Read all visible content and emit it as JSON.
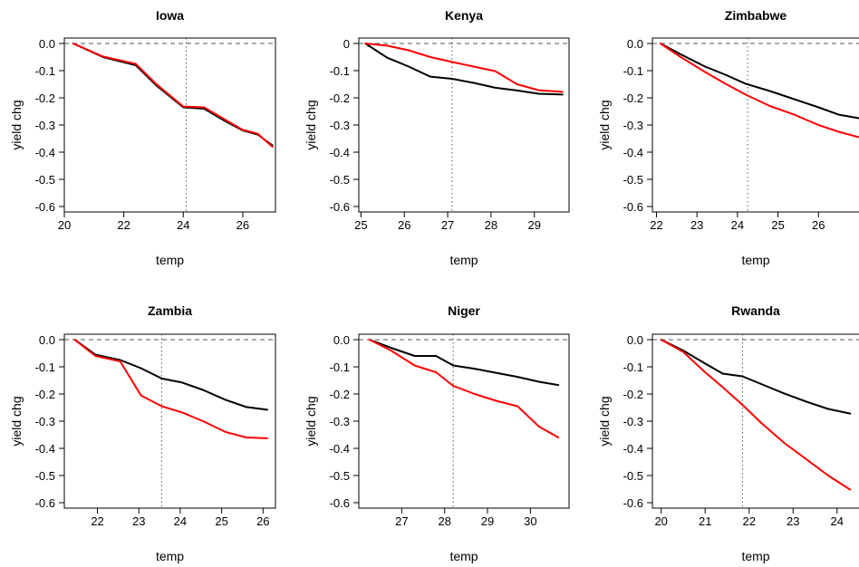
{
  "chart_data": [
    {
      "type": "line",
      "title": "Iowa",
      "xlabel": "temp",
      "ylabel": "yield chg",
      "xlim": [
        20,
        27.1
      ],
      "ylim": [
        -0.62,
        0.02
      ],
      "xticks": [
        20,
        22,
        24,
        26
      ],
      "yticks": [
        0.0,
        -0.1,
        -0.2,
        -0.3,
        -0.4,
        -0.5,
        -0.6
      ],
      "ytick_labels": [
        "0.0",
        "-0.1",
        "-0.2",
        "-0.3",
        "-0.4",
        "-0.5",
        "-0.6"
      ],
      "vline": 24.1,
      "hline": 0,
      "series": [
        {
          "color": "#000000",
          "x": [
            20.3,
            21.3,
            22.4,
            23.1,
            24.0,
            24.7,
            25.4,
            26.0,
            26.5,
            27.0
          ],
          "y": [
            0.0,
            -0.05,
            -0.08,
            -0.155,
            -0.235,
            -0.24,
            -0.285,
            -0.32,
            -0.335,
            -0.375
          ]
        },
        {
          "color": "#ff0000",
          "x": [
            20.3,
            21.3,
            22.4,
            23.1,
            24.0,
            24.7,
            25.4,
            26.0,
            26.5,
            27.0
          ],
          "y": [
            0.0,
            -0.048,
            -0.075,
            -0.15,
            -0.232,
            -0.235,
            -0.28,
            -0.318,
            -0.332,
            -0.38
          ]
        }
      ]
    },
    {
      "type": "line",
      "title": "Kenya",
      "xlabel": "temp",
      "ylabel": "yield chg",
      "xlim": [
        24.95,
        29.8
      ],
      "ylim": [
        -0.62,
        0.02
      ],
      "xticks": [
        25,
        26,
        27,
        28,
        29
      ],
      "yticks": [
        0.0,
        -0.1,
        -0.2,
        -0.3,
        -0.4,
        -0.5,
        -0.6
      ],
      "ytick_labels": [
        "0",
        "-0.1",
        "-0.2",
        "-0.3",
        "-0.4",
        "-0.5",
        "-0.6"
      ],
      "vline": 27.1,
      "hline": 0,
      "series": [
        {
          "color": "#000000",
          "x": [
            25.1,
            25.6,
            26.1,
            26.6,
            27.1,
            27.6,
            28.1,
            28.6,
            29.1,
            29.65
          ],
          "y": [
            0.0,
            -0.052,
            -0.085,
            -0.122,
            -0.13,
            -0.145,
            -0.163,
            -0.173,
            -0.185,
            -0.188
          ]
        },
        {
          "color": "#ff0000",
          "x": [
            25.1,
            25.6,
            26.1,
            26.6,
            27.1,
            27.6,
            28.1,
            28.6,
            29.1,
            29.65
          ],
          "y": [
            0.0,
            -0.008,
            -0.025,
            -0.05,
            -0.068,
            -0.085,
            -0.102,
            -0.15,
            -0.172,
            -0.178
          ]
        }
      ]
    },
    {
      "type": "line",
      "title": "Zimbabwe",
      "xlabel": "temp",
      "ylabel": "yield chg",
      "xlim": [
        21.9,
        27.0
      ],
      "ylim": [
        -0.62,
        0.02
      ],
      "xticks": [
        22,
        23,
        24,
        25,
        26
      ],
      "yticks": [
        0.0,
        -0.1,
        -0.2,
        -0.3,
        -0.4,
        -0.5,
        -0.6
      ],
      "ytick_labels": [
        "0.0",
        "-0.1",
        "-0.2",
        "-0.3",
        "-0.4",
        "-0.5",
        "-0.6"
      ],
      "vline": 24.25,
      "hline": 0,
      "series": [
        {
          "color": "#000000",
          "x": [
            22.1,
            22.6,
            23.2,
            23.7,
            24.2,
            24.8,
            25.4,
            26.0,
            26.5,
            27.0
          ],
          "y": [
            0.0,
            -0.04,
            -0.085,
            -0.115,
            -0.148,
            -0.175,
            -0.205,
            -0.235,
            -0.262,
            -0.275
          ]
        },
        {
          "color": "#ff0000",
          "x": [
            22.1,
            22.6,
            23.2,
            23.7,
            24.2,
            24.8,
            25.4,
            26.0,
            26.5,
            27.0
          ],
          "y": [
            0.0,
            -0.05,
            -0.105,
            -0.148,
            -0.188,
            -0.23,
            -0.262,
            -0.3,
            -0.325,
            -0.345
          ]
        }
      ]
    },
    {
      "type": "line",
      "title": "Zambia",
      "xlabel": "temp",
      "ylabel": "yield chg",
      "xlim": [
        21.2,
        26.3
      ],
      "ylim": [
        -0.62,
        0.02
      ],
      "xticks": [
        22,
        23,
        24,
        25,
        26
      ],
      "yticks": [
        0.0,
        -0.1,
        -0.2,
        -0.3,
        -0.4,
        -0.5,
        -0.6
      ],
      "ytick_labels": [
        "0.0",
        "-0.1",
        "-0.2",
        "-0.3",
        "-0.4",
        "-0.5",
        "-0.6"
      ],
      "vline": 23.55,
      "hline": 0,
      "series": [
        {
          "color": "#000000",
          "x": [
            21.45,
            21.95,
            22.55,
            23.05,
            23.55,
            24.05,
            24.55,
            25.1,
            25.6,
            26.1
          ],
          "y": [
            0.0,
            -0.055,
            -0.075,
            -0.105,
            -0.143,
            -0.158,
            -0.185,
            -0.222,
            -0.248,
            -0.258
          ]
        },
        {
          "color": "#ff0000",
          "x": [
            21.45,
            21.95,
            22.55,
            23.05,
            23.55,
            24.05,
            24.55,
            25.1,
            25.6,
            26.1
          ],
          "y": [
            0.0,
            -0.06,
            -0.08,
            -0.205,
            -0.245,
            -0.268,
            -0.3,
            -0.34,
            -0.36,
            -0.363
          ]
        }
      ]
    },
    {
      "type": "line",
      "title": "Niger",
      "xlabel": "temp",
      "ylabel": "yield chg",
      "xlim": [
        26.0,
        30.9
      ],
      "ylim": [
        -0.62,
        0.02
      ],
      "xticks": [
        27,
        28,
        29,
        30
      ],
      "yticks": [
        0.0,
        -0.1,
        -0.2,
        -0.3,
        -0.4,
        -0.5,
        -0.6
      ],
      "ytick_labels": [
        "0.0",
        "-0.1",
        "-0.2",
        "-0.3",
        "-0.4",
        "-0.5",
        "-0.6"
      ],
      "vline": 28.2,
      "hline": 0,
      "series": [
        {
          "color": "#000000",
          "x": [
            26.25,
            26.75,
            27.3,
            27.8,
            28.2,
            28.7,
            29.2,
            29.7,
            30.2,
            30.65
          ],
          "y": [
            0.0,
            -0.03,
            -0.06,
            -0.06,
            -0.095,
            -0.107,
            -0.122,
            -0.137,
            -0.155,
            -0.167
          ]
        },
        {
          "color": "#ff0000",
          "x": [
            26.25,
            26.75,
            27.3,
            27.8,
            28.2,
            28.7,
            29.2,
            29.7,
            30.2,
            30.65
          ],
          "y": [
            0.0,
            -0.04,
            -0.095,
            -0.12,
            -0.17,
            -0.2,
            -0.225,
            -0.245,
            -0.32,
            -0.36
          ]
        }
      ]
    },
    {
      "type": "line",
      "title": "Rwanda",
      "xlabel": "temp",
      "ylabel": "yield chg",
      "xlim": [
        19.8,
        24.5
      ],
      "ylim": [
        -0.62,
        0.02
      ],
      "xticks": [
        20,
        21,
        22,
        23,
        24
      ],
      "yticks": [
        0.0,
        -0.1,
        -0.2,
        -0.3,
        -0.4,
        -0.5,
        -0.6
      ],
      "ytick_labels": [
        "0.0",
        "-0.1",
        "-0.2",
        "-0.3",
        "-0.4",
        "-0.5",
        "-0.6"
      ],
      "vline": 21.85,
      "hline": 0,
      "series": [
        {
          "color": "#000000",
          "x": [
            20.0,
            20.5,
            21.0,
            21.4,
            21.85,
            22.3,
            22.8,
            23.3,
            23.8,
            24.3
          ],
          "y": [
            0.0,
            -0.04,
            -0.088,
            -0.125,
            -0.135,
            -0.165,
            -0.198,
            -0.228,
            -0.255,
            -0.272
          ]
        },
        {
          "color": "#ff0000",
          "x": [
            20.0,
            20.5,
            21.0,
            21.4,
            21.85,
            22.3,
            22.8,
            23.3,
            23.8,
            24.3
          ],
          "y": [
            0.0,
            -0.045,
            -0.12,
            -0.175,
            -0.24,
            -0.31,
            -0.38,
            -0.44,
            -0.5,
            -0.552
          ]
        }
      ]
    }
  ]
}
